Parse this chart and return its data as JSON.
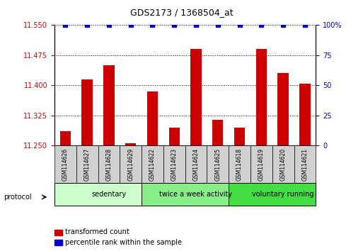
{
  "title": "GDS2173 / 1368504_at",
  "samples": [
    "GSM114626",
    "GSM114627",
    "GSM114628",
    "GSM114629",
    "GSM114622",
    "GSM114623",
    "GSM114624",
    "GSM114625",
    "GSM114618",
    "GSM114619",
    "GSM114620",
    "GSM114621"
  ],
  "bar_values": [
    11.285,
    11.415,
    11.45,
    11.255,
    11.385,
    11.295,
    11.49,
    11.315,
    11.295,
    11.49,
    11.43,
    11.405
  ],
  "dot_values": [
    100,
    100,
    100,
    100,
    100,
    100,
    100,
    100,
    100,
    100,
    100,
    100
  ],
  "ymin": 11.25,
  "ymax": 11.55,
  "yticks": [
    11.25,
    11.325,
    11.4,
    11.475,
    11.55
  ],
  "y2ticks": [
    0,
    25,
    50,
    75,
    100
  ],
  "y2min": 0,
  "y2max": 100,
  "bar_color": "#cc0000",
  "dot_color": "#0000cc",
  "groups": [
    {
      "label": "sedentary",
      "start": 0,
      "end": 4,
      "color": "#ccffcc"
    },
    {
      "label": "twice a week activity",
      "start": 4,
      "end": 8,
      "color": "#88ee88"
    },
    {
      "label": "voluntary running",
      "start": 8,
      "end": 12,
      "color": "#44dd44"
    }
  ],
  "protocol_label": "protocol",
  "legend_bar_label": "transformed count",
  "legend_dot_label": "percentile rank within the sample",
  "background_color": "#ffffff",
  "grid_color": "#000000",
  "tick_label_color_left": "#cc0000",
  "tick_label_color_right": "#0000cc"
}
